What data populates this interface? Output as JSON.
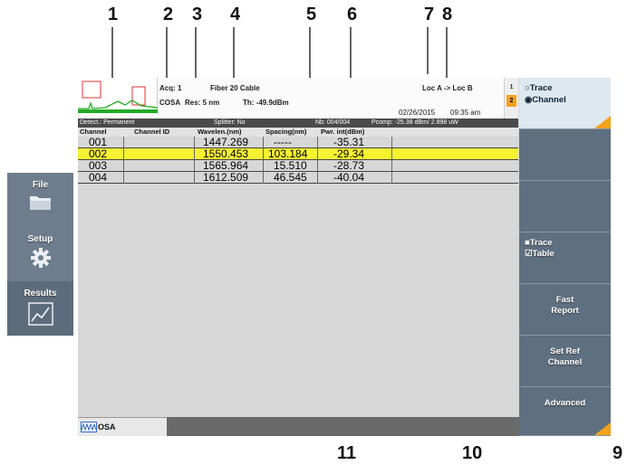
{
  "callouts": [
    "1",
    "2",
    "3",
    "4",
    "5",
    "6",
    "7",
    "8",
    "9",
    "10",
    "11"
  ],
  "nav": {
    "items": [
      {
        "label": "File",
        "icon": "folder-icon"
      },
      {
        "label": "Setup",
        "icon": "gear-icon"
      },
      {
        "label": "Results",
        "icon": "chart-icon"
      }
    ]
  },
  "header": {
    "acq": "Acq: 1",
    "fiber": "Fiber 20  Cable",
    "cosa": "COSA",
    "res": "Res: 5 nm",
    "th": "Th: -49.9dBm",
    "loc": "Loc A -> Loc B",
    "date": "02/26/2015",
    "time": "09:35 am",
    "tab1": "1",
    "tab2": "2"
  },
  "status": {
    "detect": "Detect.: Permanent",
    "splitter": "Splitter: No",
    "nb": "Nb: 004/004",
    "pcomp": "Pcomp:  -25.38 dBm/ 2.898 uW"
  },
  "table": {
    "headers": [
      "Channel",
      "Channel ID",
      "Wavelen.(nm)",
      "Spacing(nm)",
      "Pwr. int(dBm)"
    ],
    "rows": [
      {
        "channel": "001",
        "id": "",
        "wavelen": "1447.269",
        "spacing": "-----",
        "pwr": "-35.31"
      },
      {
        "channel": "002",
        "id": "",
        "wavelen": "1550.453",
        "spacing": "103.184",
        "pwr": "-29.34"
      },
      {
        "channel": "003",
        "id": "",
        "wavelen": "1565.964",
        "spacing": "15.510",
        "pwr": "-28.73"
      },
      {
        "channel": "004",
        "id": "",
        "wavelen": "1612.509",
        "spacing": "46.545",
        "pwr": "-40.04"
      }
    ],
    "selected_channel": "002"
  },
  "footer": {
    "osa_label": "OSA"
  },
  "softkeys": {
    "radio_trace": "Trace",
    "radio_channel": "Channel",
    "check_trace": "Trace",
    "check_table": "Table",
    "fast_report_1": "Fast",
    "fast_report_2": "Report",
    "set_ref_1": "Set Ref",
    "set_ref_2": "Channel",
    "advanced": "Advanced"
  },
  "colors": {
    "selected_row": "#f6f232",
    "softkey_bg": "#5e6f80",
    "accent": "#f3a21c",
    "trace": "#22aa22",
    "marker": "#dd3333"
  }
}
